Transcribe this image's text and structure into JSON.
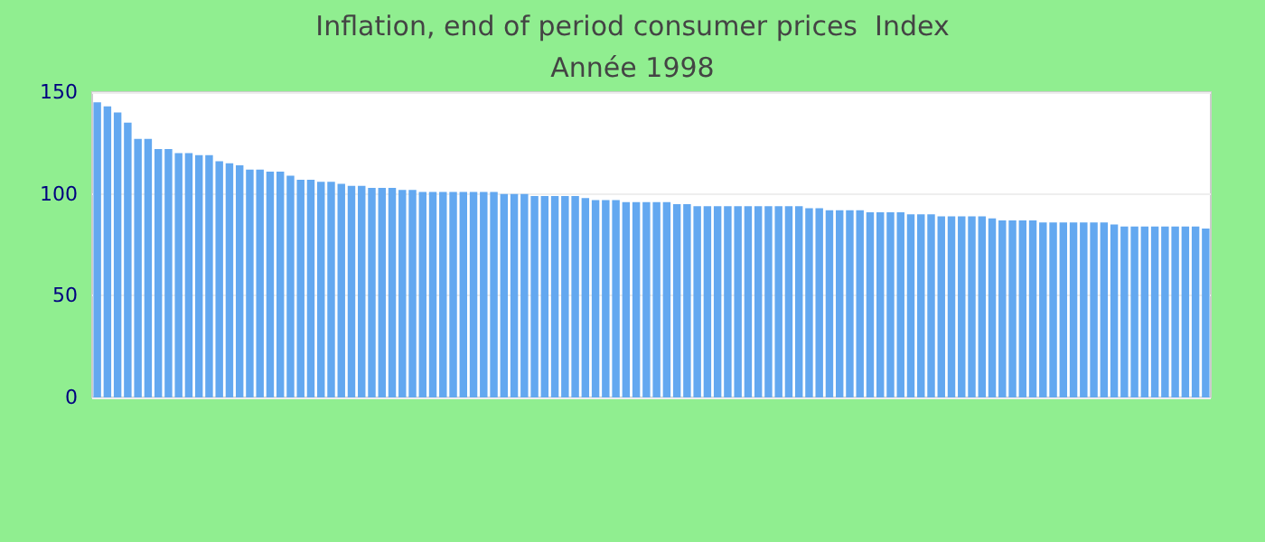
{
  "chart_data": {
    "type": "bar",
    "title": "Inflation, end of period consumer prices  Index",
    "subtitle": "Année 1998",
    "categories": [
      null,
      null,
      null,
      null,
      null,
      null,
      null,
      null,
      null,
      null,
      null,
      null,
      null,
      null,
      null,
      null,
      null,
      null,
      null,
      null,
      null,
      null,
      null,
      null,
      null,
      null,
      null,
      null,
      null,
      null,
      null,
      null,
      null,
      null,
      null,
      null,
      null,
      null,
      null,
      null,
      null,
      null,
      null,
      null,
      null,
      null,
      null,
      null,
      null,
      null,
      null,
      null,
      null,
      null,
      null,
      null,
      null,
      null,
      null,
      null,
      null,
      null,
      null,
      null,
      null,
      null,
      null,
      null,
      null,
      null,
      null,
      null,
      null,
      null,
      null,
      null,
      null,
      null,
      null,
      null,
      null,
      null,
      null,
      null,
      null,
      null,
      null,
      null,
      null,
      null,
      null,
      null,
      null,
      null,
      null,
      null,
      null,
      null,
      null,
      null,
      null,
      null,
      null,
      null,
      null,
      null,
      null,
      null,
      null,
      null
    ],
    "values": [
      145,
      143,
      140,
      135,
      127,
      127,
      122,
      122,
      120,
      120,
      119,
      119,
      116,
      115,
      114,
      112,
      112,
      111,
      111,
      109,
      107,
      107,
      106,
      106,
      105,
      104,
      104,
      103,
      103,
      103,
      102,
      102,
      101,
      101,
      101,
      101,
      101,
      101,
      101,
      101,
      100,
      100,
      100,
      99,
      99,
      99,
      99,
      99,
      98,
      97,
      97,
      97,
      96,
      96,
      96,
      96,
      96,
      95,
      95,
      94,
      94,
      94,
      94,
      94,
      94,
      94,
      94,
      94,
      94,
      94,
      93,
      93,
      92,
      92,
      92,
      92,
      91,
      91,
      91,
      91,
      90,
      90,
      90,
      89,
      89,
      89,
      89,
      89,
      88,
      87,
      87,
      87,
      87,
      86,
      86,
      86,
      86,
      86,
      86,
      86,
      85,
      84,
      84,
      84,
      84,
      84,
      84,
      84,
      84,
      83
    ],
    "color": "#63a8f0",
    "ylim": [
      0,
      150
    ],
    "yticks": [
      0,
      50,
      100,
      150
    ],
    "grid": true
  }
}
